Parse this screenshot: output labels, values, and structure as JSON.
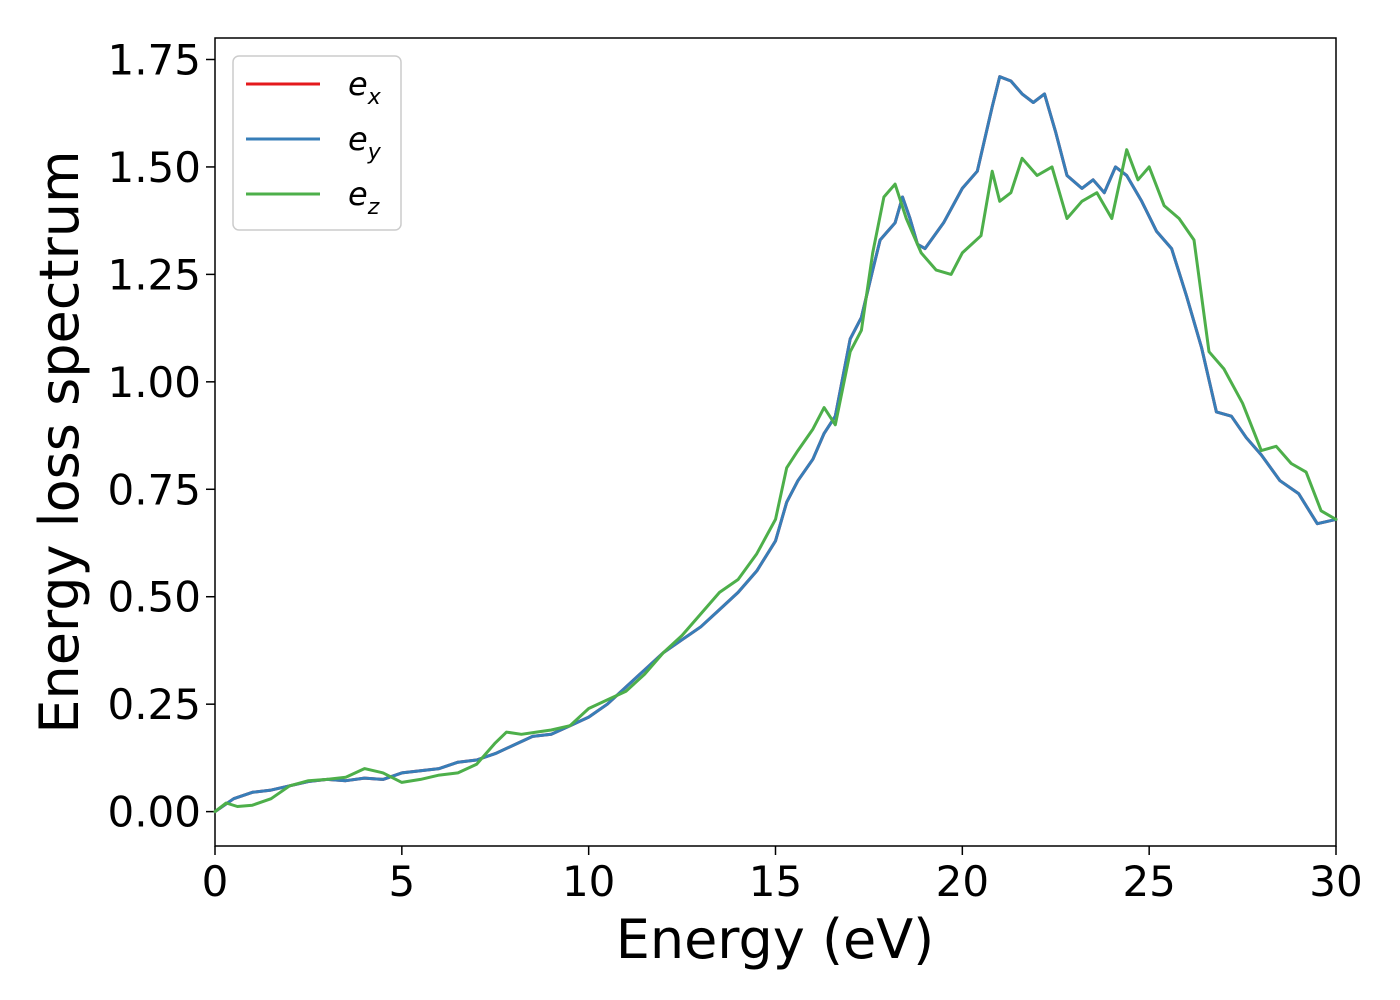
{
  "chart_data": {
    "type": "line",
    "xlabel": "Energy (eV)",
    "ylabel": "Energy loss spectrum",
    "xlim": [
      0,
      30
    ],
    "ylim": [
      -0.08,
      1.8
    ],
    "xticks": [
      0,
      5,
      10,
      15,
      20,
      25,
      30
    ],
    "xtick_labels": [
      "0",
      "5",
      "10",
      "15",
      "20",
      "25",
      "30"
    ],
    "yticks": [
      0,
      0.25,
      0.5,
      0.75,
      1.0,
      1.25,
      1.5,
      1.75
    ],
    "ytick_labels": [
      "0.00",
      "0.25",
      "0.50",
      "0.75",
      "1.00",
      "1.25",
      "1.50",
      "1.75"
    ],
    "grid": false,
    "legend_position": "top-left",
    "series": [
      {
        "name_base": "e",
        "name_sub": "x",
        "color": "#e41a1c",
        "points": [
          [
            0,
            0
          ],
          [
            0.5,
            0.03
          ],
          [
            1,
            0.045
          ],
          [
            1.5,
            0.05
          ],
          [
            2,
            0.06
          ],
          [
            2.5,
            0.07
          ],
          [
            3,
            0.075
          ],
          [
            3.5,
            0.072
          ],
          [
            4,
            0.078
          ],
          [
            4.5,
            0.075
          ],
          [
            5,
            0.09
          ],
          [
            5.5,
            0.095
          ],
          [
            6,
            0.1
          ],
          [
            6.5,
            0.115
          ],
          [
            7,
            0.12
          ],
          [
            7.5,
            0.135
          ],
          [
            8,
            0.155
          ],
          [
            8.5,
            0.175
          ],
          [
            9,
            0.18
          ],
          [
            9.5,
            0.2
          ],
          [
            10,
            0.22
          ],
          [
            10.5,
            0.25
          ],
          [
            11,
            0.29
          ],
          [
            11.5,
            0.33
          ],
          [
            12,
            0.37
          ],
          [
            12.5,
            0.4
          ],
          [
            13,
            0.43
          ],
          [
            13.5,
            0.47
          ],
          [
            14,
            0.51
          ],
          [
            14.5,
            0.56
          ],
          [
            15,
            0.63
          ],
          [
            15.3,
            0.72
          ],
          [
            15.6,
            0.77
          ],
          [
            16,
            0.82
          ],
          [
            16.3,
            0.88
          ],
          [
            16.6,
            0.92
          ],
          [
            17,
            1.1
          ],
          [
            17.3,
            1.15
          ],
          [
            17.6,
            1.26
          ],
          [
            17.8,
            1.33
          ],
          [
            18,
            1.35
          ],
          [
            18.2,
            1.37
          ],
          [
            18.4,
            1.43
          ],
          [
            18.6,
            1.38
          ],
          [
            18.8,
            1.32
          ],
          [
            19,
            1.31
          ],
          [
            19.5,
            1.37
          ],
          [
            20,
            1.45
          ],
          [
            20.4,
            1.49
          ],
          [
            20.8,
            1.64
          ],
          [
            21,
            1.71
          ],
          [
            21.3,
            1.7
          ],
          [
            21.6,
            1.67
          ],
          [
            21.9,
            1.65
          ],
          [
            22.2,
            1.67
          ],
          [
            22.5,
            1.58
          ],
          [
            22.8,
            1.48
          ],
          [
            23.2,
            1.45
          ],
          [
            23.5,
            1.47
          ],
          [
            23.8,
            1.44
          ],
          [
            24.1,
            1.5
          ],
          [
            24.4,
            1.48
          ],
          [
            24.8,
            1.42
          ],
          [
            25.2,
            1.35
          ],
          [
            25.6,
            1.31
          ],
          [
            26,
            1.2
          ],
          [
            26.4,
            1.08
          ],
          [
            26.8,
            0.93
          ],
          [
            27.2,
            0.92
          ],
          [
            27.6,
            0.87
          ],
          [
            28,
            0.83
          ],
          [
            28.5,
            0.77
          ],
          [
            29,
            0.74
          ],
          [
            29.5,
            0.67
          ],
          [
            30,
            0.68
          ]
        ]
      },
      {
        "name_base": "e",
        "name_sub": "y",
        "color": "#377eb8",
        "points": [
          [
            0,
            0
          ],
          [
            0.5,
            0.03
          ],
          [
            1,
            0.045
          ],
          [
            1.5,
            0.05
          ],
          [
            2,
            0.06
          ],
          [
            2.5,
            0.07
          ],
          [
            3,
            0.075
          ],
          [
            3.5,
            0.072
          ],
          [
            4,
            0.078
          ],
          [
            4.5,
            0.075
          ],
          [
            5,
            0.09
          ],
          [
            5.5,
            0.095
          ],
          [
            6,
            0.1
          ],
          [
            6.5,
            0.115
          ],
          [
            7,
            0.12
          ],
          [
            7.5,
            0.135
          ],
          [
            8,
            0.155
          ],
          [
            8.5,
            0.175
          ],
          [
            9,
            0.18
          ],
          [
            9.5,
            0.2
          ],
          [
            10,
            0.22
          ],
          [
            10.5,
            0.25
          ],
          [
            11,
            0.29
          ],
          [
            11.5,
            0.33
          ],
          [
            12,
            0.37
          ],
          [
            12.5,
            0.4
          ],
          [
            13,
            0.43
          ],
          [
            13.5,
            0.47
          ],
          [
            14,
            0.51
          ],
          [
            14.5,
            0.56
          ],
          [
            15,
            0.63
          ],
          [
            15.3,
            0.72
          ],
          [
            15.6,
            0.77
          ],
          [
            16,
            0.82
          ],
          [
            16.3,
            0.88
          ],
          [
            16.6,
            0.92
          ],
          [
            17,
            1.1
          ],
          [
            17.3,
            1.15
          ],
          [
            17.6,
            1.26
          ],
          [
            17.8,
            1.33
          ],
          [
            18,
            1.35
          ],
          [
            18.2,
            1.37
          ],
          [
            18.4,
            1.43
          ],
          [
            18.6,
            1.38
          ],
          [
            18.8,
            1.32
          ],
          [
            19,
            1.31
          ],
          [
            19.5,
            1.37
          ],
          [
            20,
            1.45
          ],
          [
            20.4,
            1.49
          ],
          [
            20.8,
            1.64
          ],
          [
            21,
            1.71
          ],
          [
            21.3,
            1.7
          ],
          [
            21.6,
            1.67
          ],
          [
            21.9,
            1.65
          ],
          [
            22.2,
            1.67
          ],
          [
            22.5,
            1.58
          ],
          [
            22.8,
            1.48
          ],
          [
            23.2,
            1.45
          ],
          [
            23.5,
            1.47
          ],
          [
            23.8,
            1.44
          ],
          [
            24.1,
            1.5
          ],
          [
            24.4,
            1.48
          ],
          [
            24.8,
            1.42
          ],
          [
            25.2,
            1.35
          ],
          [
            25.6,
            1.31
          ],
          [
            26,
            1.2
          ],
          [
            26.4,
            1.08
          ],
          [
            26.8,
            0.93
          ],
          [
            27.2,
            0.92
          ],
          [
            27.6,
            0.87
          ],
          [
            28,
            0.83
          ],
          [
            28.5,
            0.77
          ],
          [
            29,
            0.74
          ],
          [
            29.5,
            0.67
          ],
          [
            30,
            0.68
          ]
        ]
      },
      {
        "name_base": "e",
        "name_sub": "z",
        "color": "#4daf4a",
        "points": [
          [
            0,
            0
          ],
          [
            0.3,
            0.02
          ],
          [
            0.6,
            0.012
          ],
          [
            1,
            0.015
          ],
          [
            1.5,
            0.03
          ],
          [
            2,
            0.06
          ],
          [
            2.5,
            0.072
          ],
          [
            3,
            0.075
          ],
          [
            3.5,
            0.08
          ],
          [
            4,
            0.1
          ],
          [
            4.5,
            0.09
          ],
          [
            5,
            0.068
          ],
          [
            5.5,
            0.075
          ],
          [
            6,
            0.085
          ],
          [
            6.5,
            0.09
          ],
          [
            7,
            0.11
          ],
          [
            7.5,
            0.16
          ],
          [
            7.8,
            0.185
          ],
          [
            8.2,
            0.18
          ],
          [
            8.6,
            0.185
          ],
          [
            9,
            0.19
          ],
          [
            9.5,
            0.2
          ],
          [
            10,
            0.24
          ],
          [
            10.5,
            0.26
          ],
          [
            11,
            0.28
          ],
          [
            11.5,
            0.32
          ],
          [
            12,
            0.37
          ],
          [
            12.5,
            0.41
          ],
          [
            13,
            0.46
          ],
          [
            13.5,
            0.51
          ],
          [
            14,
            0.54
          ],
          [
            14.5,
            0.6
          ],
          [
            15,
            0.68
          ],
          [
            15.3,
            0.8
          ],
          [
            15.6,
            0.84
          ],
          [
            16,
            0.89
          ],
          [
            16.3,
            0.94
          ],
          [
            16.6,
            0.9
          ],
          [
            17,
            1.07
          ],
          [
            17.3,
            1.12
          ],
          [
            17.6,
            1.3
          ],
          [
            17.9,
            1.43
          ],
          [
            18.2,
            1.46
          ],
          [
            18.5,
            1.38
          ],
          [
            18.9,
            1.3
          ],
          [
            19.3,
            1.26
          ],
          [
            19.7,
            1.25
          ],
          [
            20,
            1.3
          ],
          [
            20.5,
            1.34
          ],
          [
            20.8,
            1.49
          ],
          [
            21,
            1.42
          ],
          [
            21.3,
            1.44
          ],
          [
            21.6,
            1.52
          ],
          [
            22,
            1.48
          ],
          [
            22.4,
            1.5
          ],
          [
            22.8,
            1.38
          ],
          [
            23.2,
            1.42
          ],
          [
            23.6,
            1.44
          ],
          [
            24,
            1.38
          ],
          [
            24.4,
            1.54
          ],
          [
            24.7,
            1.47
          ],
          [
            25,
            1.5
          ],
          [
            25.4,
            1.41
          ],
          [
            25.8,
            1.38
          ],
          [
            26.2,
            1.33
          ],
          [
            26.6,
            1.07
          ],
          [
            27,
            1.03
          ],
          [
            27.5,
            0.95
          ],
          [
            28,
            0.84
          ],
          [
            28.4,
            0.85
          ],
          [
            28.8,
            0.81
          ],
          [
            29.2,
            0.79
          ],
          [
            29.6,
            0.7
          ],
          [
            30,
            0.68
          ]
        ]
      }
    ]
  }
}
